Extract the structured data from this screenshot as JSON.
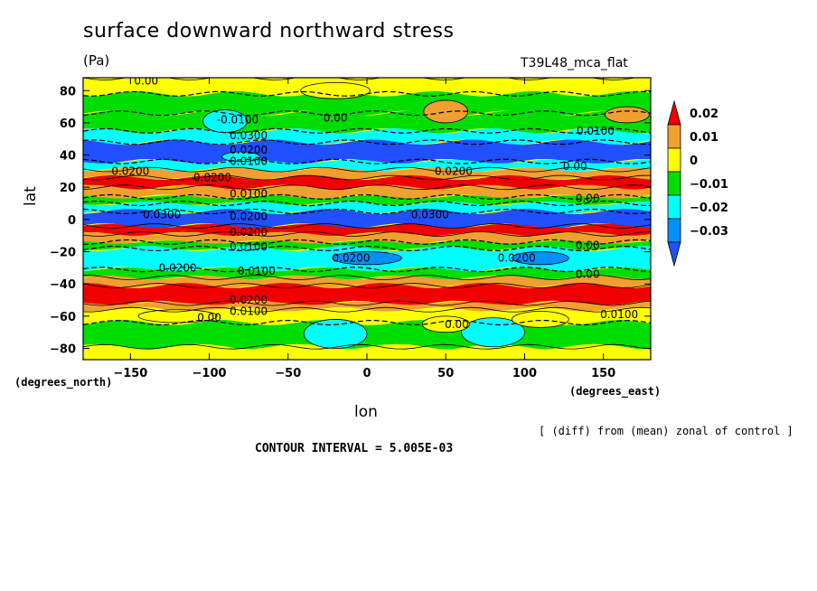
{
  "chart_data": {
    "type": "heatmap",
    "title": "surface downward northward stress",
    "units": "(Pa)",
    "run_id": "T39L48_mca_flat",
    "xlabel": "lon",
    "ylabel": "lat",
    "x_units": "(degrees_east)",
    "y_units": "(degrees_north)",
    "note": "[ (diff) from (mean) zonal of control ]",
    "contour_interval": "CONTOUR INTERVAL = 5.005E-03",
    "xlim": [
      -180,
      180
    ],
    "ylim": [
      -87,
      88
    ],
    "x_ticks": [
      -150,
      -100,
      -50,
      0,
      50,
      100,
      150
    ],
    "x_tick_labels": [
      "−150",
      "−100",
      "−50",
      "0",
      "50",
      "100",
      "150"
    ],
    "y_ticks": [
      80,
      60,
      40,
      20,
      0,
      -20,
      -40,
      -60,
      -80
    ],
    "y_tick_labels": [
      "80",
      "60",
      "40",
      "20",
      "0",
      "−20",
      "−40",
      "−60",
      "−80"
    ],
    "colorbar": {
      "levels": [
        0.02,
        0.01,
        0,
        -0.01,
        -0.02,
        -0.03
      ],
      "labels": [
        "0.02",
        "0.01",
        "0",
        "−0.01",
        "−0.02",
        "−0.03"
      ],
      "colors": [
        "#f00000",
        "#f0a030",
        "#ffff00",
        "#00dd00",
        "#00ffff",
        "#0090ff",
        "#2050ff"
      ]
    },
    "zonal_bands": [
      {
        "lat": [
          78,
          88
        ],
        "value": 0.005
      },
      {
        "lat": [
          66,
          78
        ],
        "value": -0.005
      },
      {
        "lat": [
          55,
          66
        ],
        "value": -0.008
      },
      {
        "lat": [
          48,
          55
        ],
        "value": -0.015
      },
      {
        "lat": [
          36,
          48
        ],
        "value": -0.035
      },
      {
        "lat": [
          31,
          36
        ],
        "value": -0.015
      },
      {
        "lat": [
          26,
          31
        ],
        "value": 0.015
      },
      {
        "lat": [
          20,
          26
        ],
        "value": 0.025
      },
      {
        "lat": [
          14,
          20
        ],
        "value": 0.015
      },
      {
        "lat": [
          10,
          14
        ],
        "value": -0.005
      },
      {
        "lat": [
          5,
          10
        ],
        "value": -0.015
      },
      {
        "lat": [
          -4,
          5
        ],
        "value": -0.035
      },
      {
        "lat": [
          -9,
          -4
        ],
        "value": 0.025
      },
      {
        "lat": [
          -14,
          -9
        ],
        "value": 0.015
      },
      {
        "lat": [
          -18,
          -14
        ],
        "value": -0.005
      },
      {
        "lat": [
          -31,
          -18
        ],
        "value": -0.015
      },
      {
        "lat": [
          -36,
          -31
        ],
        "value": -0.008
      },
      {
        "lat": [
          -41,
          -36
        ],
        "value": 0.015
      },
      {
        "lat": [
          -52,
          -41
        ],
        "value": 0.025
      },
      {
        "lat": [
          -56,
          -52
        ],
        "value": 0.015
      },
      {
        "lat": [
          -64,
          -56
        ],
        "value": 0.005
      },
      {
        "lat": [
          -79,
          -64
        ],
        "value": -0.005
      },
      {
        "lat": [
          -88,
          -79
        ],
        "value": 0.005
      }
    ],
    "anomalies": [
      {
        "lon": 50,
        "lat": 67,
        "rlon": 14,
        "rlat": 7,
        "value": 0.015
      },
      {
        "lon": 165,
        "lat": 65,
        "rlon": 14,
        "rlat": 5,
        "value": 0.015
      },
      {
        "lon": -90,
        "lat": 61,
        "rlon": 14,
        "rlat": 7,
        "value": -0.015
      },
      {
        "lon": -20,
        "lat": 80,
        "rlon": 22,
        "rlat": 5,
        "value": 0.005
      },
      {
        "lon": -20,
        "lat": -71,
        "rlon": 20,
        "rlat": 9,
        "value": -0.015
      },
      {
        "lon": 80,
        "lat": -70,
        "rlon": 20,
        "rlat": 9,
        "value": -0.015
      },
      {
        "lon": 50,
        "lat": -65,
        "rlon": 15,
        "rlat": 5,
        "value": 0.005
      },
      {
        "lon": 110,
        "lat": -62,
        "rlon": 18,
        "rlat": 5,
        "value": 0.005
      },
      {
        "lon": -120,
        "lat": -60,
        "rlon": 25,
        "rlat": 4,
        "value": 0.005
      },
      {
        "lon": 0,
        "lat": -24,
        "rlon": 22,
        "rlat": 4,
        "value": -0.025
      },
      {
        "lon": 110,
        "lat": -24,
        "rlon": 18,
        "rlat": 4,
        "value": -0.025
      },
      {
        "lon": -80,
        "lat": 39,
        "rlon": 12,
        "rlat": 3,
        "value": -0.015
      }
    ],
    "contour_labels": [
      {
        "lon": -140,
        "lat": 86,
        "text": "0.00"
      },
      {
        "lon": -82,
        "lat": 62,
        "text": "-0.0100"
      },
      {
        "lon": -20,
        "lat": 63,
        "text": "0.00"
      },
      {
        "lon": -75,
        "lat": 52,
        "text": "0.0300"
      },
      {
        "lon": -75,
        "lat": 43,
        "text": "0.0200"
      },
      {
        "lon": -75,
        "lat": 36,
        "text": "0.0100"
      },
      {
        "lon": -150,
        "lat": 30,
        "text": "0.0200"
      },
      {
        "lon": -98,
        "lat": 26,
        "text": "0.0200"
      },
      {
        "lon": 55,
        "lat": 30,
        "text": "0.0200"
      },
      {
        "lon": 145,
        "lat": 55,
        "text": "0.0100"
      },
      {
        "lon": 132,
        "lat": 33,
        "text": "0.00"
      },
      {
        "lon": -75,
        "lat": 16,
        "text": "0.0100"
      },
      {
        "lon": 140,
        "lat": 13,
        "text": "0.00"
      },
      {
        "lon": -130,
        "lat": 3,
        "text": "0.0300"
      },
      {
        "lon": -75,
        "lat": 2,
        "text": "0.0200"
      },
      {
        "lon": 40,
        "lat": 3,
        "text": "0.0300"
      },
      {
        "lon": -75,
        "lat": -8,
        "text": "0.0200"
      },
      {
        "lon": -75,
        "lat": -17,
        "text": "0.0100"
      },
      {
        "lon": 140,
        "lat": -16,
        "text": "0.00"
      },
      {
        "lon": -10,
        "lat": -24,
        "text": "0.0200"
      },
      {
        "lon": 95,
        "lat": -24,
        "text": "0.0200"
      },
      {
        "lon": -120,
        "lat": -30,
        "text": "0.0200"
      },
      {
        "lon": -70,
        "lat": -32,
        "text": "0.0100"
      },
      {
        "lon": 140,
        "lat": -34,
        "text": "0.00"
      },
      {
        "lon": -75,
        "lat": -50,
        "text": "0.0200"
      },
      {
        "lon": -75,
        "lat": -57,
        "text": "0.0100"
      },
      {
        "lon": -100,
        "lat": -61,
        "text": "0.00"
      },
      {
        "lon": 160,
        "lat": -59,
        "text": "0.0100"
      },
      {
        "lon": 57,
        "lat": -65,
        "text": "0.00"
      }
    ]
  }
}
